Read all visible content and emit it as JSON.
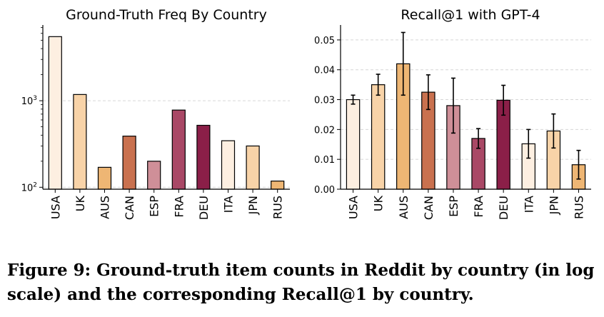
{
  "colors": {
    "USA": "#fdefe1",
    "UK": "#f8d3a8",
    "AUS": "#eeb674",
    "CAN": "#c9714f",
    "ESP": "#cf8f98",
    "FRA": "#a94866",
    "DEU": "#8b1f48",
    "ITA": "#fdefe1",
    "JPN": "#f8d3a8",
    "RUS": "#eeb674"
  },
  "chart_data": [
    {
      "type": "bar",
      "title": "Ground-Truth Freq By Country",
      "xlabel": "",
      "ylabel": "",
      "yscale": "log",
      "ylim": [
        95,
        7500
      ],
      "grid": "y-major-dashed",
      "yticks": [
        {
          "value": 100,
          "base": "10",
          "exp": "2"
        },
        {
          "value": 1000,
          "base": "10",
          "exp": "3"
        }
      ],
      "categories": [
        "USA",
        "UK",
        "AUS",
        "CAN",
        "ESP",
        "FRA",
        "DEU",
        "ITA",
        "JPN",
        "RUS"
      ],
      "values": [
        5500,
        1180,
        170,
        390,
        200,
        780,
        520,
        345,
        300,
        118
      ]
    },
    {
      "type": "bar",
      "title": "Recall@1 with GPT-4",
      "xlabel": "",
      "ylabel": "",
      "ylim": [
        0,
        0.055
      ],
      "grid": "y-major-dashed",
      "yticks": [
        "0.00",
        "0.01",
        "0.02",
        "0.03",
        "0.04",
        "0.05"
      ],
      "categories": [
        "USA",
        "UK",
        "AUS",
        "CAN",
        "ESP",
        "FRA",
        "DEU",
        "ITA",
        "JPN",
        "RUS"
      ],
      "values": [
        0.03,
        0.035,
        0.042,
        0.0325,
        0.028,
        0.017,
        0.0298,
        0.0152,
        0.0195,
        0.0082
      ],
      "errors": [
        0.0015,
        0.0035,
        0.0105,
        0.0058,
        0.0092,
        0.0033,
        0.005,
        0.0048,
        0.0057,
        0.0048
      ]
    }
  ],
  "caption": {
    "text": "Figure 9: Ground-truth item counts in Reddit by country (in log scale) and the corresponding Recall@1 by country."
  }
}
